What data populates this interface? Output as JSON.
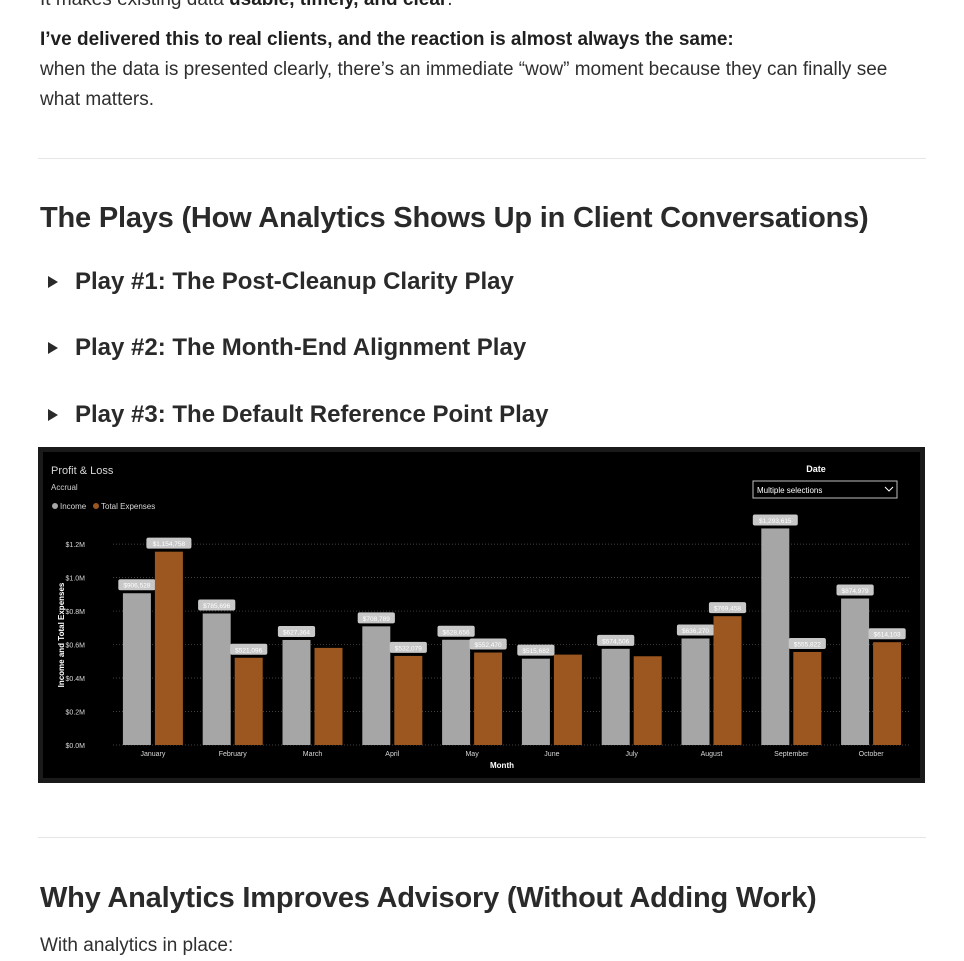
{
  "intro": {
    "cutoff_prefix": "It makes existing data ",
    "cutoff_bold": "usable, timely, and clear",
    "cutoff_suffix": ".",
    "delivered_bold": "I’ve delivered this to real clients, and the reaction is almost always the same:",
    "delivered_text": "when the data is presented clearly, there’s an immediate “wow” moment because they can finally see what matters."
  },
  "plays_section": {
    "heading": "The Plays (How Analytics Shows Up in Client Conversations)",
    "items": [
      {
        "label": "Play #1: The Post-Cleanup Clarity Play"
      },
      {
        "label": "Play #2: The Month-End Alignment Play"
      },
      {
        "label": "Play #3: The Default Reference Point Play"
      }
    ]
  },
  "why_section": {
    "heading": "Why Analytics Improves Advisory (Without Adding Work)",
    "cutoff_text": "With analytics in place:"
  },
  "chart_data": {
    "type": "bar",
    "title": "Profit & Loss",
    "subtitle": "Accrual",
    "xlabel": "Month",
    "ylabel": "Income and Total Expenses",
    "categories": [
      "January",
      "February",
      "March",
      "April",
      "May",
      "June",
      "July",
      "August",
      "September",
      "October"
    ],
    "series": [
      {
        "name": "Income",
        "color": "#a6a6a6",
        "values": [
          906528,
          785696,
          627364,
          708789,
          628656,
          515682,
          574506,
          636270,
          1293615,
          874979
        ]
      },
      {
        "name": "Total Expenses",
        "color": "#9c5720",
        "values": [
          1154758,
          521096,
          580000,
          532079,
          552470,
          540000,
          530000,
          769458,
          555822,
          614103
        ]
      }
    ],
    "data_labels": [
      [
        "$906,528",
        "$785,696",
        "$627,364",
        "$708,789",
        "$628,656",
        "$515,682",
        "$574,506",
        "$636,270",
        "$1,293,615",
        "$874,979"
      ],
      [
        "$1,154,758",
        "$521,096",
        "",
        "$532,079",
        "$552,470",
        "",
        "",
        "$769,458",
        "$555,822",
        "$614,103"
      ]
    ],
    "yticks": [
      {
        "value": 0,
        "label": "$0.0M"
      },
      {
        "value": 200000,
        "label": "$0.2M"
      },
      {
        "value": 400000,
        "label": "$0.4M"
      },
      {
        "value": 600000,
        "label": "$0.6M"
      },
      {
        "value": 800000,
        "label": "$0.8M"
      },
      {
        "value": 1000000,
        "label": "$1.0M"
      },
      {
        "value": 1200000,
        "label": "$1.2M"
      }
    ],
    "ylim": [
      0,
      1350000
    ],
    "legend_position": "top-left",
    "grid": true,
    "filter": {
      "title": "Date",
      "value": "Multiple selections"
    }
  }
}
